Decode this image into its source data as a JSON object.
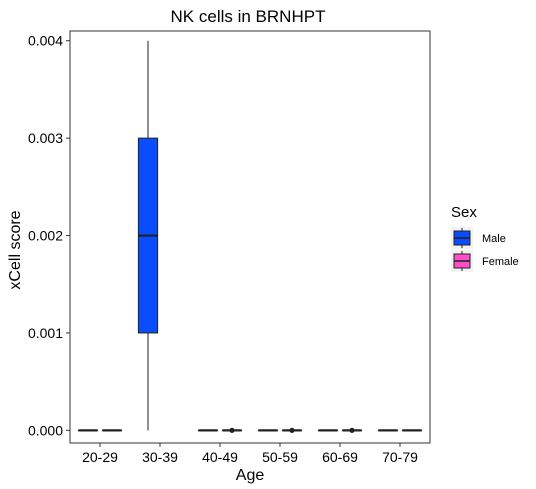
{
  "chart_data": {
    "type": "box",
    "title": "NK cells in BRNHPT",
    "xlabel": "Age",
    "ylabel": "xCell score",
    "categories": [
      "20-29",
      "30-39",
      "40-49",
      "50-59",
      "60-69",
      "70-79"
    ],
    "ylim": [
      -0.00013,
      0.0041
    ],
    "yticks": [
      0,
      0.001,
      0.002,
      0.003,
      0.004
    ],
    "ytick_labels": [
      "0.000",
      "0.001",
      "0.002",
      "0.003",
      "0.004"
    ],
    "grid": false,
    "legend": {
      "title": "Sex",
      "position": "right"
    },
    "series": [
      {
        "name": "Male",
        "color": "#0a4dff",
        "boxes": [
          {
            "category": "20-29",
            "min": 0,
            "q1": 0,
            "median": 0,
            "q3": 0,
            "max": 0,
            "outliers": []
          },
          {
            "category": "30-39",
            "min": 0,
            "q1": 0.001,
            "median": 0.002,
            "q3": 0.003,
            "max": 0.004,
            "outliers": []
          },
          {
            "category": "40-49",
            "min": 0,
            "q1": 0,
            "median": 0,
            "q3": 0,
            "max": 0,
            "outliers": []
          },
          {
            "category": "50-59",
            "min": 0,
            "q1": 0,
            "median": 0,
            "q3": 0,
            "max": 0,
            "outliers": []
          },
          {
            "category": "60-69",
            "min": 0,
            "q1": 0,
            "median": 0,
            "q3": 0,
            "max": 0,
            "outliers": []
          },
          {
            "category": "70-79",
            "min": 0,
            "q1": 0,
            "median": 0,
            "q3": 0,
            "max": 0,
            "outliers": []
          }
        ]
      },
      {
        "name": "Female",
        "color": "#ff4fc8",
        "boxes": [
          {
            "category": "20-29",
            "min": 0,
            "q1": 0,
            "median": 0,
            "q3": 0,
            "max": 0,
            "outliers": []
          },
          {
            "category": "40-49",
            "min": 0,
            "q1": 0,
            "median": 0,
            "q3": 0,
            "max": 0,
            "outliers": [
              0
            ]
          },
          {
            "category": "50-59",
            "min": 0,
            "q1": 0,
            "median": 0,
            "q3": 0,
            "max": 0,
            "outliers": [
              0
            ]
          },
          {
            "category": "60-69",
            "min": 0,
            "q1": 0,
            "median": 0,
            "q3": 0,
            "max": 0,
            "outliers": [
              0
            ]
          },
          {
            "category": "70-79",
            "min": 0,
            "q1": 0,
            "median": 0,
            "q3": 0,
            "max": 0,
            "outliers": []
          }
        ]
      }
    ]
  }
}
